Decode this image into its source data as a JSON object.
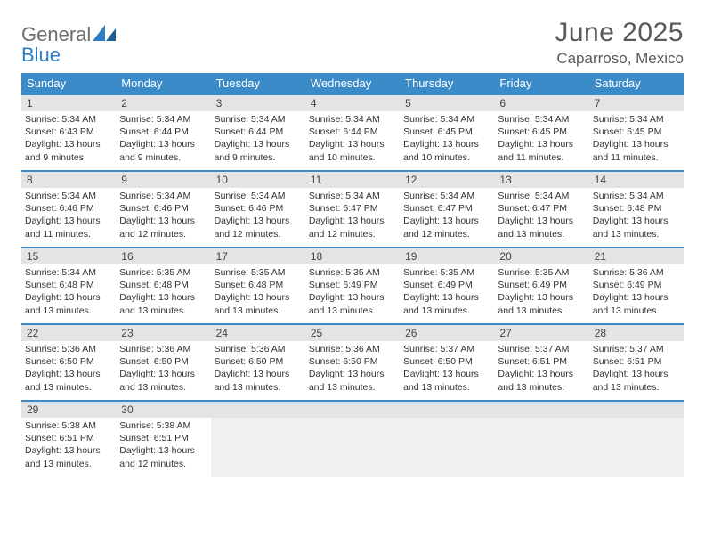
{
  "brand": {
    "part1": "General",
    "part2": "Blue"
  },
  "title": "June 2025",
  "location": "Caparroso, Mexico",
  "colors": {
    "header_bg": "#3b8bc9",
    "header_fg": "#ffffff",
    "daynum_bg": "#e4e4e4",
    "row_border": "#3b8bc9",
    "text": "#333333",
    "title_color": "#5a5a5a",
    "logo_gray": "#6d6d6d",
    "logo_blue": "#2d7ec4",
    "empty_bg": "#f0f0f0"
  },
  "weekdays": [
    "Sunday",
    "Monday",
    "Tuesday",
    "Wednesday",
    "Thursday",
    "Friday",
    "Saturday"
  ],
  "weeks": [
    [
      {
        "n": "1",
        "sunrise": "5:34 AM",
        "sunset": "6:43 PM",
        "daylight": "13 hours and 9 minutes."
      },
      {
        "n": "2",
        "sunrise": "5:34 AM",
        "sunset": "6:44 PM",
        "daylight": "13 hours and 9 minutes."
      },
      {
        "n": "3",
        "sunrise": "5:34 AM",
        "sunset": "6:44 PM",
        "daylight": "13 hours and 9 minutes."
      },
      {
        "n": "4",
        "sunrise": "5:34 AM",
        "sunset": "6:44 PM",
        "daylight": "13 hours and 10 minutes."
      },
      {
        "n": "5",
        "sunrise": "5:34 AM",
        "sunset": "6:45 PM",
        "daylight": "13 hours and 10 minutes."
      },
      {
        "n": "6",
        "sunrise": "5:34 AM",
        "sunset": "6:45 PM",
        "daylight": "13 hours and 11 minutes."
      },
      {
        "n": "7",
        "sunrise": "5:34 AM",
        "sunset": "6:45 PM",
        "daylight": "13 hours and 11 minutes."
      }
    ],
    [
      {
        "n": "8",
        "sunrise": "5:34 AM",
        "sunset": "6:46 PM",
        "daylight": "13 hours and 11 minutes."
      },
      {
        "n": "9",
        "sunrise": "5:34 AM",
        "sunset": "6:46 PM",
        "daylight": "13 hours and 12 minutes."
      },
      {
        "n": "10",
        "sunrise": "5:34 AM",
        "sunset": "6:46 PM",
        "daylight": "13 hours and 12 minutes."
      },
      {
        "n": "11",
        "sunrise": "5:34 AM",
        "sunset": "6:47 PM",
        "daylight": "13 hours and 12 minutes."
      },
      {
        "n": "12",
        "sunrise": "5:34 AM",
        "sunset": "6:47 PM",
        "daylight": "13 hours and 12 minutes."
      },
      {
        "n": "13",
        "sunrise": "5:34 AM",
        "sunset": "6:47 PM",
        "daylight": "13 hours and 13 minutes."
      },
      {
        "n": "14",
        "sunrise": "5:34 AM",
        "sunset": "6:48 PM",
        "daylight": "13 hours and 13 minutes."
      }
    ],
    [
      {
        "n": "15",
        "sunrise": "5:34 AM",
        "sunset": "6:48 PM",
        "daylight": "13 hours and 13 minutes."
      },
      {
        "n": "16",
        "sunrise": "5:35 AM",
        "sunset": "6:48 PM",
        "daylight": "13 hours and 13 minutes."
      },
      {
        "n": "17",
        "sunrise": "5:35 AM",
        "sunset": "6:48 PM",
        "daylight": "13 hours and 13 minutes."
      },
      {
        "n": "18",
        "sunrise": "5:35 AM",
        "sunset": "6:49 PM",
        "daylight": "13 hours and 13 minutes."
      },
      {
        "n": "19",
        "sunrise": "5:35 AM",
        "sunset": "6:49 PM",
        "daylight": "13 hours and 13 minutes."
      },
      {
        "n": "20",
        "sunrise": "5:35 AM",
        "sunset": "6:49 PM",
        "daylight": "13 hours and 13 minutes."
      },
      {
        "n": "21",
        "sunrise": "5:36 AM",
        "sunset": "6:49 PM",
        "daylight": "13 hours and 13 minutes."
      }
    ],
    [
      {
        "n": "22",
        "sunrise": "5:36 AM",
        "sunset": "6:50 PM",
        "daylight": "13 hours and 13 minutes."
      },
      {
        "n": "23",
        "sunrise": "5:36 AM",
        "sunset": "6:50 PM",
        "daylight": "13 hours and 13 minutes."
      },
      {
        "n": "24",
        "sunrise": "5:36 AM",
        "sunset": "6:50 PM",
        "daylight": "13 hours and 13 minutes."
      },
      {
        "n": "25",
        "sunrise": "5:36 AM",
        "sunset": "6:50 PM",
        "daylight": "13 hours and 13 minutes."
      },
      {
        "n": "26",
        "sunrise": "5:37 AM",
        "sunset": "6:50 PM",
        "daylight": "13 hours and 13 minutes."
      },
      {
        "n": "27",
        "sunrise": "5:37 AM",
        "sunset": "6:51 PM",
        "daylight": "13 hours and 13 minutes."
      },
      {
        "n": "28",
        "sunrise": "5:37 AM",
        "sunset": "6:51 PM",
        "daylight": "13 hours and 13 minutes."
      }
    ],
    [
      {
        "n": "29",
        "sunrise": "5:38 AM",
        "sunset": "6:51 PM",
        "daylight": "13 hours and 13 minutes."
      },
      {
        "n": "30",
        "sunrise": "5:38 AM",
        "sunset": "6:51 PM",
        "daylight": "13 hours and 12 minutes."
      },
      null,
      null,
      null,
      null,
      null
    ]
  ],
  "labels": {
    "sunrise": "Sunrise:",
    "sunset": "Sunset:",
    "daylight": "Daylight:"
  }
}
